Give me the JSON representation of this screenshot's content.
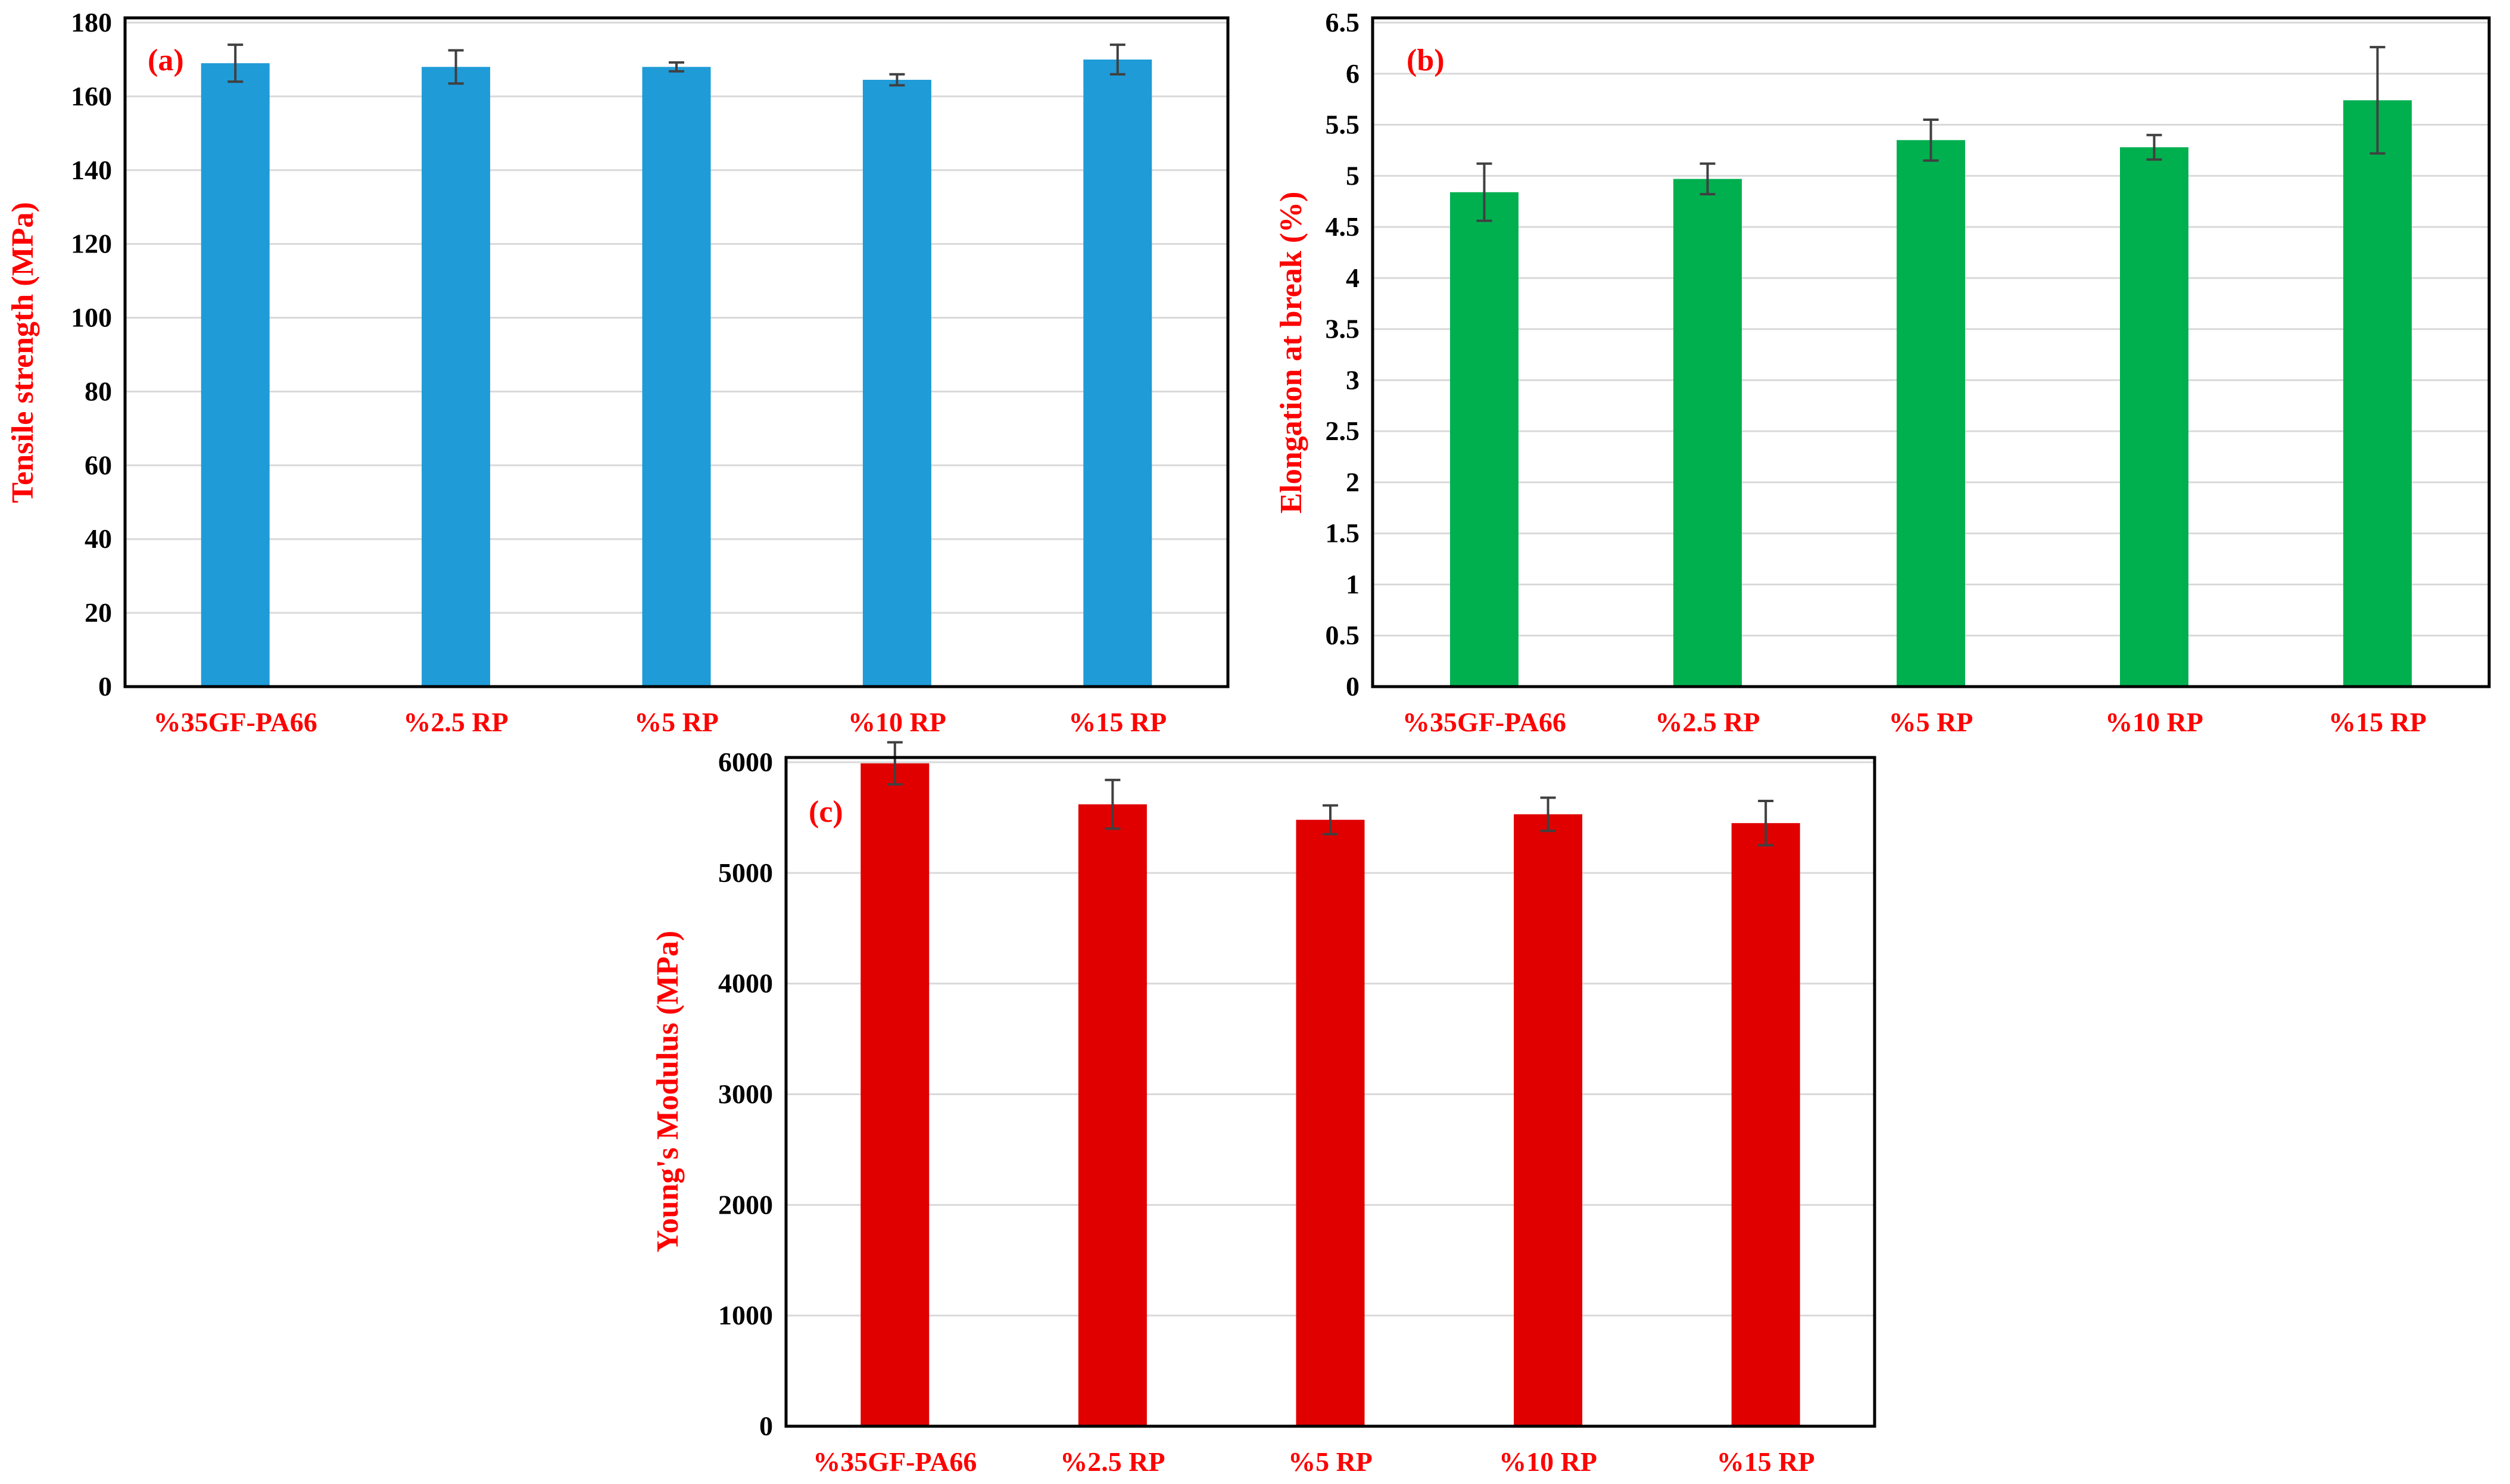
{
  "colors": {
    "label": "#ff0000",
    "grid": "#d9d9d9",
    "frame": "#000000",
    "errorbar": "#404040"
  },
  "chart_data": [
    {
      "id": "a",
      "type": "bar",
      "panel_label": "(a)",
      "title": "",
      "xlabel": "",
      "ylabel": "Tensile strength (MPa)",
      "categories": [
        "%35GF-PA66",
        "%2.5 RP",
        "%5 RP",
        "%10 RP",
        "%15 RP"
      ],
      "values": [
        169,
        168,
        168,
        164.5,
        170
      ],
      "errors": [
        5,
        4.5,
        1.2,
        1.5,
        4
      ],
      "ylim": [
        0,
        180
      ],
      "yticks": [
        0,
        20,
        40,
        60,
        80,
        100,
        120,
        140,
        160,
        180
      ],
      "ytick_labels": [
        "0",
        "20",
        "40",
        "60",
        "80",
        "100",
        "120",
        "140",
        "160",
        "180"
      ],
      "grid": true,
      "legend": "none",
      "color": "#1f9bd8"
    },
    {
      "id": "b",
      "type": "bar",
      "panel_label": "(b)",
      "title": "",
      "xlabel": "",
      "ylabel": "Elongation at break (%)",
      "categories": [
        "%35GF-PA66",
        "%2.5 RP",
        "%5 RP",
        "%10 RP",
        "%15 RP"
      ],
      "values": [
        4.84,
        4.97,
        5.35,
        5.28,
        5.74
      ],
      "errors": [
        0.28,
        0.15,
        0.2,
        0.12,
        0.52
      ],
      "ylim": [
        0,
        6.5
      ],
      "yticks": [
        0,
        0.5,
        1,
        1.5,
        2,
        2.5,
        3,
        3.5,
        4,
        4.5,
        5,
        5.5,
        6,
        6.5
      ],
      "ytick_labels": [
        "0",
        "0.5",
        "1",
        "1.5",
        "2",
        "2.5",
        "3",
        "3.5",
        "4",
        "4.5",
        "5",
        "5.5",
        "6",
        "6.5"
      ],
      "grid": true,
      "legend": "none",
      "color": "#00b04f"
    },
    {
      "id": "c",
      "type": "bar",
      "panel_label": "(c)",
      "title": "",
      "xlabel": "",
      "ylabel": "Young's Modulus (MPa)",
      "categories": [
        "%35GF-PA66",
        "%2.5 RP",
        "%5 RP",
        "%10 RP",
        "%15 RP"
      ],
      "values": [
        5990,
        5620,
        5480,
        5530,
        5450
      ],
      "errors": [
        190,
        220,
        130,
        150,
        200
      ],
      "ylim": [
        0,
        6000
      ],
      "yticks": [
        0,
        1000,
        2000,
        3000,
        4000,
        5000,
        6000
      ],
      "ytick_labels": [
        "0",
        "1000",
        "2000",
        "3000",
        "4000",
        "5000",
        "6000"
      ],
      "grid": true,
      "legend": "none",
      "color": "#e00000"
    }
  ]
}
